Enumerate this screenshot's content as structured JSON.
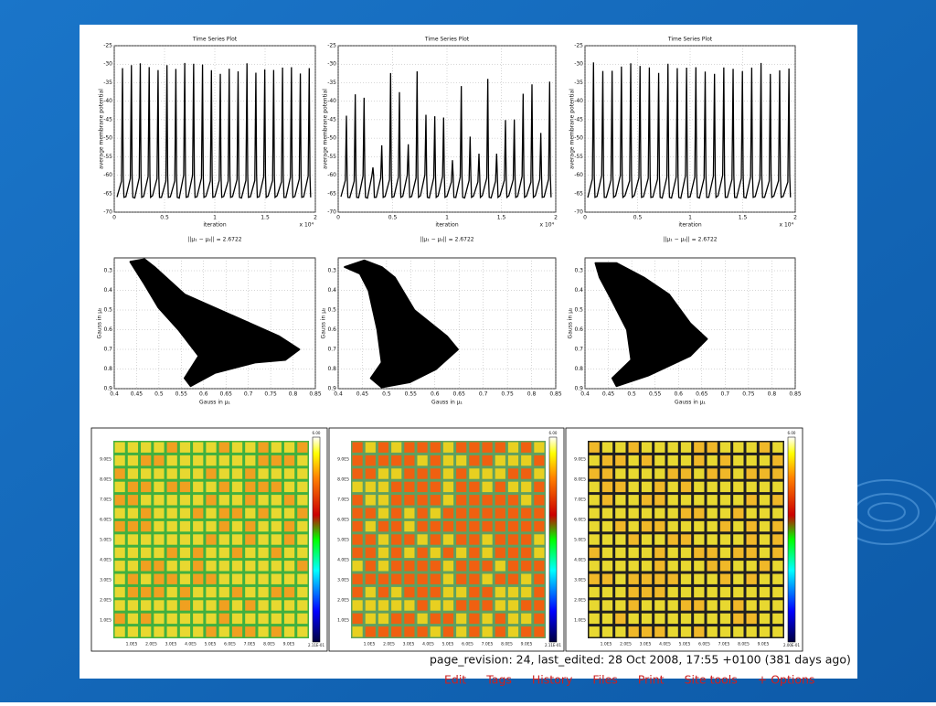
{
  "time_series": {
    "title": "Time Series Plot",
    "ylabel": "average membrane potential",
    "xlabel": "iteration",
    "exponent": "x 10⁴",
    "yticks": [
      "-25",
      "-30",
      "-35",
      "-40",
      "-45",
      "-50",
      "-55",
      "-60",
      "-65",
      "-70"
    ],
    "xticks": [
      "0",
      "0.5",
      "1",
      "1.5",
      "2"
    ]
  },
  "phase_plot": {
    "title": "||μ₁ − μ₂|| = 2.6722",
    "ylabel": "Gauss in μ₂",
    "xlabel": "Gauss in μ₁",
    "yticks": [
      "0.3",
      "0.4",
      "0.5",
      "0.6",
      "0.7",
      "0.8",
      "0.9"
    ],
    "xticks": [
      "0.4",
      "0.45",
      "0.5",
      "0.55",
      "0.6",
      "0.65",
      "0.7",
      "0.75",
      "0.8",
      "0.85"
    ]
  },
  "heatmap": {
    "yticks": [
      "1.0E5",
      "2.0E5",
      "3.0E5",
      "4.0E5",
      "5.0E5",
      "6.0E5",
      "7.0E5",
      "8.0E5",
      "9.0E5"
    ],
    "xticks": [
      "1.0E5",
      "2.0E5",
      "3.0E5",
      "4.0E5",
      "5.0E5",
      "6.0E5",
      "7.0E5",
      "8.0E5",
      "9.0E5"
    ],
    "colorbar_top": [
      "6.00",
      "6.00",
      "6.00"
    ],
    "colorbar_bottom": [
      "2.11E-01",
      "2.11E-01",
      "2.00E-01"
    ]
  },
  "footer": {
    "revision": "page_revision: 24, last_edited: 28 Oct 2008, 17:55 +0100 (381 days ago)",
    "links": [
      "Edit",
      "Tags",
      "History",
      "Files",
      "Print",
      "Site tools",
      "+ Options"
    ]
  }
}
